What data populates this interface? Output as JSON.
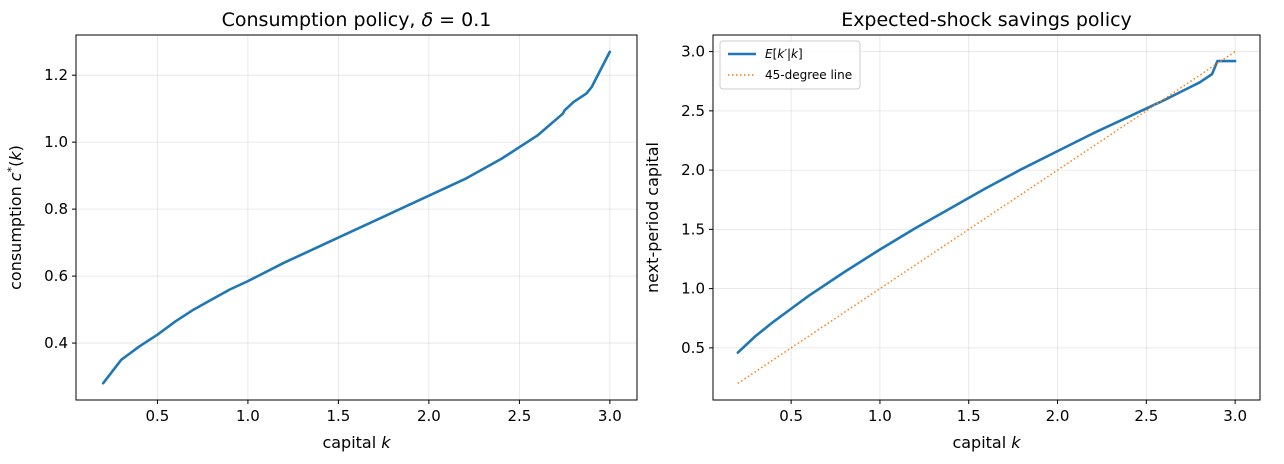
{
  "chart_data": [
    {
      "type": "line",
      "title": "Consumption policy, δ = 0.1",
      "xlabel": "capital k",
      "ylabel": "consumption c*(k)",
      "xlim": [
        0.05,
        3.15
      ],
      "ylim": [
        0.23,
        1.32
      ],
      "xticks": [
        0.5,
        1.0,
        1.5,
        2.0,
        2.5,
        3.0
      ],
      "xtick_labels": [
        "0.5",
        "1.0",
        "1.5",
        "2.0",
        "2.5",
        "3.0"
      ],
      "yticks": [
        0.4,
        0.6,
        0.8,
        1.0,
        1.2
      ],
      "ytick_labels": [
        "0.4",
        "0.6",
        "0.8",
        "1.0",
        "1.2"
      ],
      "grid": true,
      "series": [
        {
          "color": "#1f77b4",
          "style": "solid",
          "x": [
            0.2,
            0.3,
            0.4,
            0.5,
            0.6,
            0.7,
            0.8,
            0.9,
            1.0,
            1.2,
            1.4,
            1.6,
            1.8,
            2.0,
            2.2,
            2.4,
            2.6,
            2.74,
            2.75,
            2.8,
            2.87,
            2.9,
            3.0
          ],
          "y": [
            0.28,
            0.35,
            0.39,
            0.425,
            0.465,
            0.5,
            0.53,
            0.56,
            0.585,
            0.64,
            0.69,
            0.74,
            0.79,
            0.84,
            0.89,
            0.95,
            1.02,
            1.085,
            1.095,
            1.12,
            1.145,
            1.165,
            1.27
          ]
        }
      ]
    },
    {
      "type": "line",
      "title": "Expected-shock savings policy",
      "xlabel": "capital k",
      "ylabel": "next-period capital",
      "xlim": [
        0.06,
        3.14
      ],
      "ylim": [
        0.06,
        3.14
      ],
      "xticks": [
        0.5,
        1.0,
        1.5,
        2.0,
        2.5,
        3.0
      ],
      "xtick_labels": [
        "0.5",
        "1.0",
        "1.5",
        "2.0",
        "2.5",
        "3.0"
      ],
      "yticks": [
        0.5,
        1.0,
        1.5,
        2.0,
        2.5,
        3.0
      ],
      "ytick_labels": [
        "0.5",
        "1.0",
        "1.5",
        "2.0",
        "2.5",
        "3.0"
      ],
      "grid": true,
      "legend_position": "top-left",
      "series": [
        {
          "name": "E[k′|k]",
          "color": "#1f77b4",
          "style": "solid",
          "x": [
            0.2,
            0.3,
            0.4,
            0.5,
            0.6,
            0.8,
            1.0,
            1.2,
            1.4,
            1.6,
            1.8,
            2.0,
            2.2,
            2.4,
            2.6,
            2.72,
            2.8,
            2.87,
            2.9,
            3.0
          ],
          "y": [
            0.46,
            0.6,
            0.72,
            0.83,
            0.94,
            1.14,
            1.33,
            1.51,
            1.68,
            1.85,
            2.01,
            2.16,
            2.31,
            2.45,
            2.59,
            2.68,
            2.74,
            2.81,
            2.92,
            2.92
          ]
        },
        {
          "name": "45-degree line",
          "color": "#ff7f0e",
          "style": "dotted",
          "x": [
            0.2,
            3.0
          ],
          "y": [
            0.2,
            3.0
          ]
        }
      ]
    }
  ]
}
